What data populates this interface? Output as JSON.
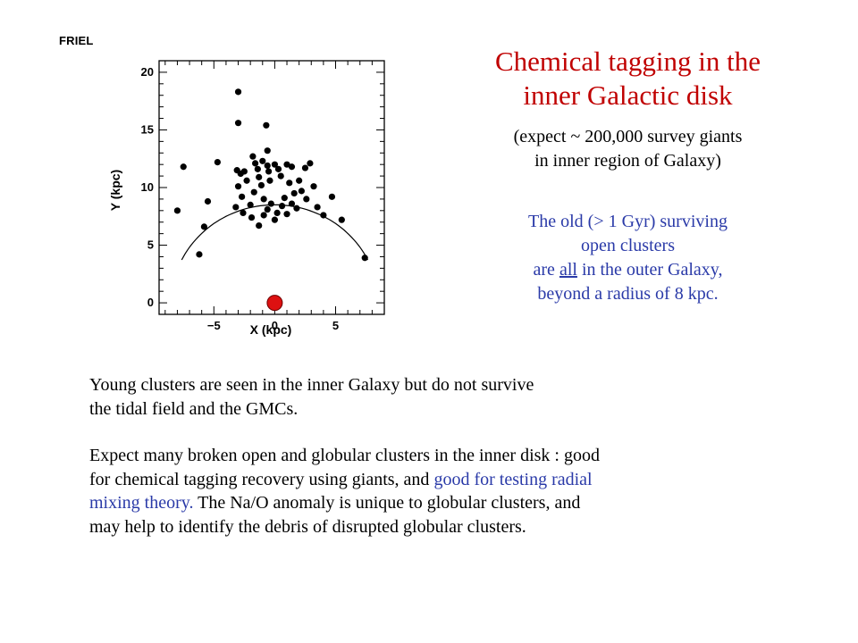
{
  "credit": "FRIEL",
  "title": [
    "Chemical tagging in the",
    "inner Galactic disk"
  ],
  "subtitle": [
    "(expect ~ 200,000 survey giants",
    "in inner region of Galaxy)"
  ],
  "note": {
    "line1": "The old (> 1 Gyr) surviving",
    "line2": "open clusters",
    "line3_pre": "are ",
    "line3_underlined": "all",
    "line3_post": " in the outer Galaxy,",
    "line4": "beyond a radius of 8 kpc."
  },
  "body": {
    "para1": [
      "Young clusters are seen in the inner Galaxy but do not survive",
      "the tidal field and the GMCs."
    ],
    "para2_line1": "Expect many broken open and globular clusters in the inner disk : good",
    "para2_line2_black": "for chemical tagging recovery using giants, and ",
    "para2_line2_blue": "good for testing radial",
    "para2_line3_blue": "mixing theory.",
    "para2_line3_black": " The Na/O anomaly is unique to globular clusters, and",
    "para2_line4": "may help to identify the debris of disrupted globular clusters."
  },
  "colors": {
    "title": "#c00000",
    "note": "#2a3aa8",
    "sun_marker": "#dd1111"
  },
  "chart_data": {
    "type": "scatter",
    "xlabel": "X (kpc)",
    "ylabel": "Y (kpc)",
    "xlim": [
      -9.5,
      9
    ],
    "ylim": [
      -1,
      21
    ],
    "x_ticks": [
      -5,
      0,
      5
    ],
    "y_ticks": [
      0,
      5,
      10,
      15,
      20
    ],
    "circle": {
      "center": [
        0,
        0
      ],
      "radius": 8.5
    },
    "sun": [
      0,
      0
    ],
    "points": [
      [
        -7.5,
        11.8
      ],
      [
        -6.2,
        4.2
      ],
      [
        -5.8,
        6.6
      ],
      [
        -5.5,
        8.8
      ],
      [
        -4.7,
        12.2
      ],
      [
        -3.0,
        18.3
      ],
      [
        -3.0,
        15.6
      ],
      [
        -8.0,
        8.0
      ],
      [
        -3.1,
        11.5
      ],
      [
        -2.8,
        11.2
      ],
      [
        -2.5,
        11.4
      ],
      [
        -2.3,
        10.6
      ],
      [
        -3.0,
        10.1
      ],
      [
        -2.7,
        9.2
      ],
      [
        -3.2,
        8.3
      ],
      [
        -2.6,
        7.8
      ],
      [
        -1.8,
        12.7
      ],
      [
        -1.6,
        12.1
      ],
      [
        -1.4,
        11.6
      ],
      [
        -1.3,
        10.9
      ],
      [
        -1.1,
        10.2
      ],
      [
        -1.7,
        9.6
      ],
      [
        -2.0,
        8.5
      ],
      [
        -1.9,
        7.4
      ],
      [
        -1.0,
        12.3
      ],
      [
        -0.6,
        11.9
      ],
      [
        -0.5,
        11.4
      ],
      [
        -0.4,
        10.6
      ],
      [
        -0.9,
        9.0
      ],
      [
        -0.6,
        8.1
      ],
      [
        -0.9,
        7.6
      ],
      [
        -1.3,
        6.7
      ],
      [
        0.0,
        12.0
      ],
      [
        0.3,
        11.6
      ],
      [
        0.5,
        11.0
      ],
      [
        0.8,
        9.1
      ],
      [
        0.6,
        8.4
      ],
      [
        0.2,
        7.8
      ],
      [
        0.0,
        7.2
      ],
      [
        -0.3,
        8.6
      ],
      [
        1.0,
        12.0
      ],
      [
        1.4,
        11.8
      ],
      [
        1.2,
        10.4
      ],
      [
        1.6,
        9.5
      ],
      [
        1.4,
        8.6
      ],
      [
        1.0,
        7.7
      ],
      [
        -0.6,
        13.2
      ],
      [
        -0.7,
        15.4
      ],
      [
        2.0,
        10.6
      ],
      [
        2.2,
        9.7
      ],
      [
        2.5,
        11.7
      ],
      [
        2.6,
        9.0
      ],
      [
        2.9,
        12.1
      ],
      [
        3.2,
        10.1
      ],
      [
        3.5,
        8.3
      ],
      [
        4.0,
        7.6
      ],
      [
        4.7,
        9.2
      ],
      [
        5.5,
        7.2
      ],
      [
        1.8,
        8.2
      ],
      [
        7.4,
        3.9
      ]
    ]
  }
}
